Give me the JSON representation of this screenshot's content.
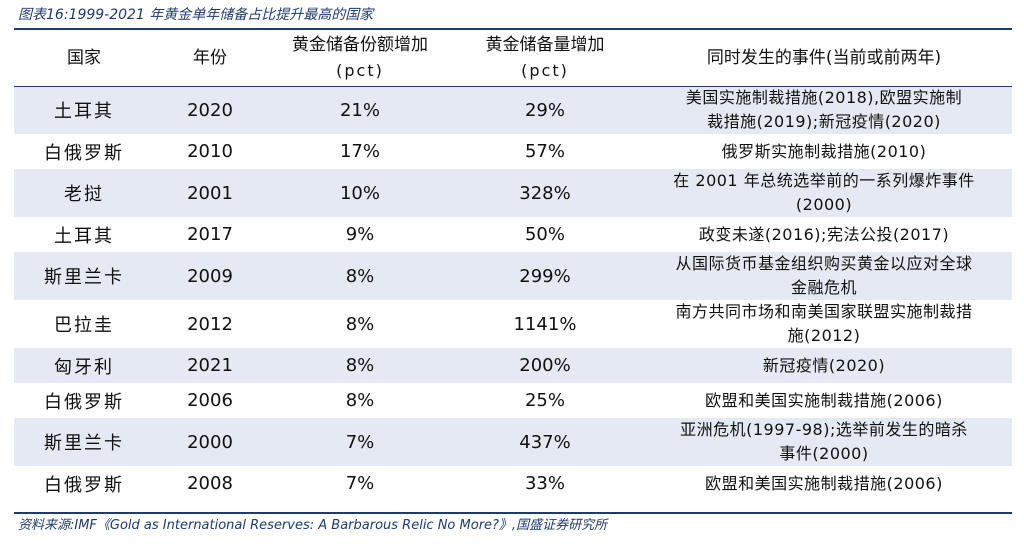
{
  "caption": "图表16:1999-2021 年黄金单年储备占比提升最高的国家",
  "header": {
    "country": "国家",
    "year": "年份",
    "share_increase": "黄金储备份额增加",
    "share_increase_unit": "(pct)",
    "volume_increase": "黄金储备量增加",
    "volume_increase_unit": "(pct)",
    "events": "同时发生的事件(当前或前两年)"
  },
  "rows": [
    {
      "country": "土耳其",
      "year": "2020",
      "share": "21%",
      "volume": "29%",
      "events": [
        "美国实施制裁措施(2018),欧盟实施制",
        "裁措施(2019);新冠疫情(2020)"
      ]
    },
    {
      "country": "白俄罗斯",
      "year": "2010",
      "share": "17%",
      "volume": "57%",
      "events": [
        "俄罗斯实施制裁措施(2010)"
      ]
    },
    {
      "country": "老挝",
      "year": "2001",
      "share": "10%",
      "volume": "328%",
      "events": [
        "在 2001 年总统选举前的一系列爆炸事件",
        "(2000)"
      ]
    },
    {
      "country": "土耳其",
      "year": "2017",
      "share": "9%",
      "volume": "50%",
      "events": [
        "政变未遂(2016);宪法公投(2017)"
      ]
    },
    {
      "country": "斯里兰卡",
      "year": "2009",
      "share": "8%",
      "volume": "299%",
      "events": [
        "从国际货币基金组织购买黄金以应对全球",
        "金融危机"
      ]
    },
    {
      "country": "巴拉圭",
      "year": "2012",
      "share": "8%",
      "volume": "1141%",
      "events": [
        "南方共同市场和南美国家联盟实施制裁措",
        "施(2012)"
      ]
    },
    {
      "country": "匈牙利",
      "year": "2021",
      "share": "8%",
      "volume": "200%",
      "events": [
        "新冠疫情(2020)"
      ]
    },
    {
      "country": "白俄罗斯",
      "year": "2006",
      "share": "8%",
      "volume": "25%",
      "events": [
        "欧盟和美国实施制裁措施(2006)"
      ]
    },
    {
      "country": "斯里兰卡",
      "year": "2000",
      "share": "7%",
      "volume": "437%",
      "events": [
        "亚洲危机(1997-98);选举前发生的暗杀",
        "事件(2000)"
      ]
    },
    {
      "country": "白俄罗斯",
      "year": "2008",
      "share": "7%",
      "volume": "33%",
      "events": [
        "欧盟和美国实施制裁措施(2006)"
      ]
    }
  ],
  "source": "资料来源:IMF《Gold as International Reserves: A Barbarous Relic No More?》,国盛证券研究所",
  "colors": {
    "accent": "#1f3a6e",
    "row_shade": "#e4e9f3"
  }
}
